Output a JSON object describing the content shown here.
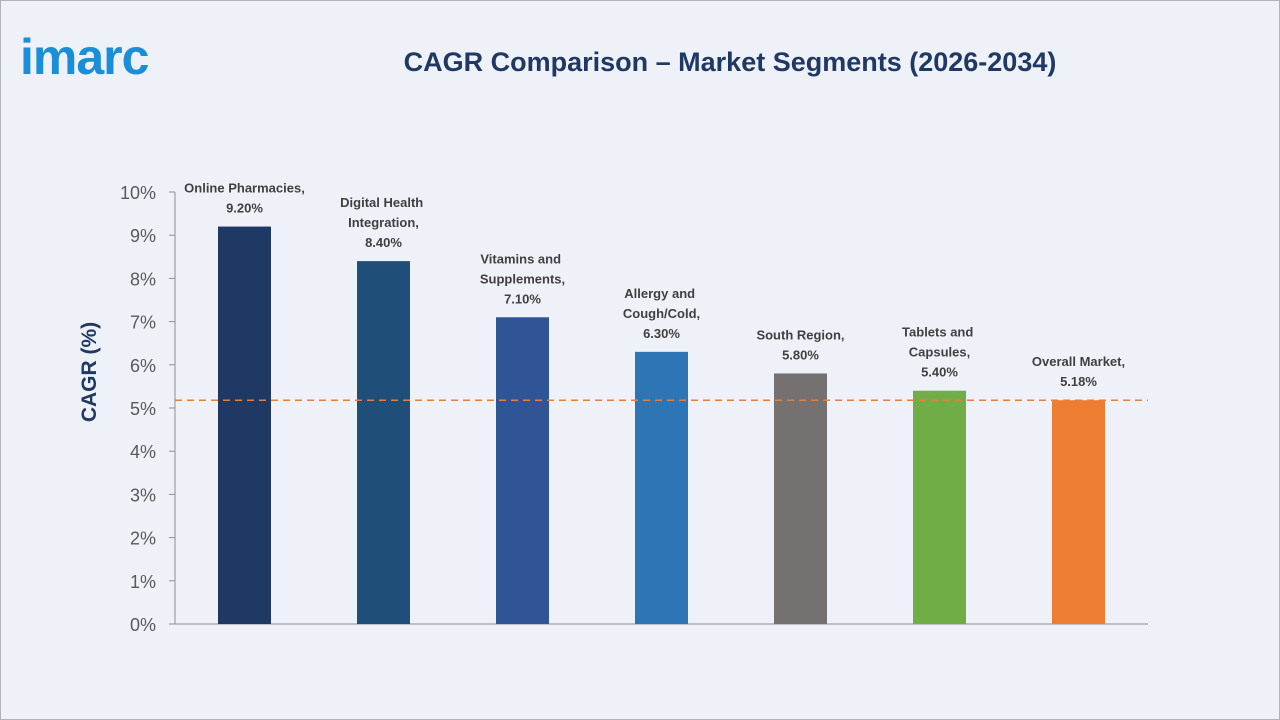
{
  "logo": "imarc",
  "chart_data": {
    "type": "bar",
    "title": "CAGR Comparison – Market Segments (2026-2034)",
    "y_label": "CAGR (%)",
    "categories": [
      "Online Pharmacies,",
      "Digital Health Integration,",
      "Vitamins and Supplements,",
      "Allergy and Cough/Cold,",
      "South Region,",
      "Tablets and Capsules,",
      "Overall Market,"
    ],
    "values": [
      9.2,
      8.4,
      7.1,
      6.3,
      5.8,
      5.4,
      5.18
    ],
    "value_labels": [
      "9.20%",
      "8.40%",
      "7.10%",
      "6.30%",
      "5.80%",
      "5.40%",
      "5.18%"
    ],
    "colors": [
      "#1f3864",
      "#1f4e79",
      "#2f5597",
      "#2e75b6",
      "#767171",
      "#70ad47",
      "#ed7d31"
    ],
    "ylim": [
      0,
      10
    ],
    "yticks": [
      {
        "value": 0,
        "label": "0%"
      },
      {
        "value": 1,
        "label": "1%"
      },
      {
        "value": 2,
        "label": "2%"
      },
      {
        "value": 3,
        "label": "3%"
      },
      {
        "value": 4,
        "label": "4%"
      },
      {
        "value": 5,
        "label": "5%"
      },
      {
        "value": 6,
        "label": "6%"
      },
      {
        "value": 7,
        "label": "7%"
      },
      {
        "value": 8,
        "label": "8%"
      },
      {
        "value": 9,
        "label": "9%"
      },
      {
        "value": 10,
        "label": "10%"
      }
    ],
    "reference_line": {
      "value": 5.18,
      "color": "#ed7d31",
      "dashed": true
    },
    "grid": false
  }
}
